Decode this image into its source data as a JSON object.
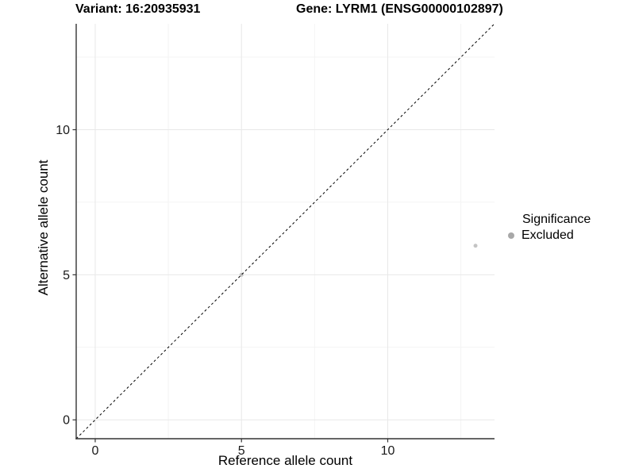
{
  "chart_data": {
    "type": "scatter",
    "title_left": "Variant: 16:20935931",
    "title_right": "Gene: LYRM1 (ENSG00000102897)",
    "xlabel": "Reference allele count",
    "ylabel": "Alternative allele count",
    "xlim": [
      -0.65,
      13.65
    ],
    "ylim": [
      -0.65,
      13.65
    ],
    "x_ticks": [
      0,
      5,
      10
    ],
    "y_ticks": [
      0,
      5,
      10
    ],
    "x_minor_ticks": [
      2.5,
      7.5,
      12.5
    ],
    "y_minor_ticks": [
      2.5,
      7.5,
      12.5
    ],
    "grid": true,
    "series": [
      {
        "name": "Excluded",
        "points": [
          {
            "x": 5,
            "y": 5
          },
          {
            "x": 13,
            "y": 6
          }
        ]
      }
    ],
    "identity_line": {
      "slope": 1,
      "intercept": 0,
      "style": "dashed",
      "dash": "3,3",
      "color": "#000000",
      "width": 1
    },
    "legend": {
      "title": "Significance",
      "position": "right",
      "entries": [
        {
          "label": "Excluded",
          "color": "#a8a8a8"
        }
      ]
    },
    "colors": {
      "background": "#ffffff",
      "grid_major": "#e8e8e8",
      "grid_minor": "#f4f4f4",
      "axis_line": "#333333",
      "tick_mark": "#333333",
      "tick_label": "#1a1a1a",
      "point": "#c4c4c4"
    },
    "point_radius": 2.5
  }
}
